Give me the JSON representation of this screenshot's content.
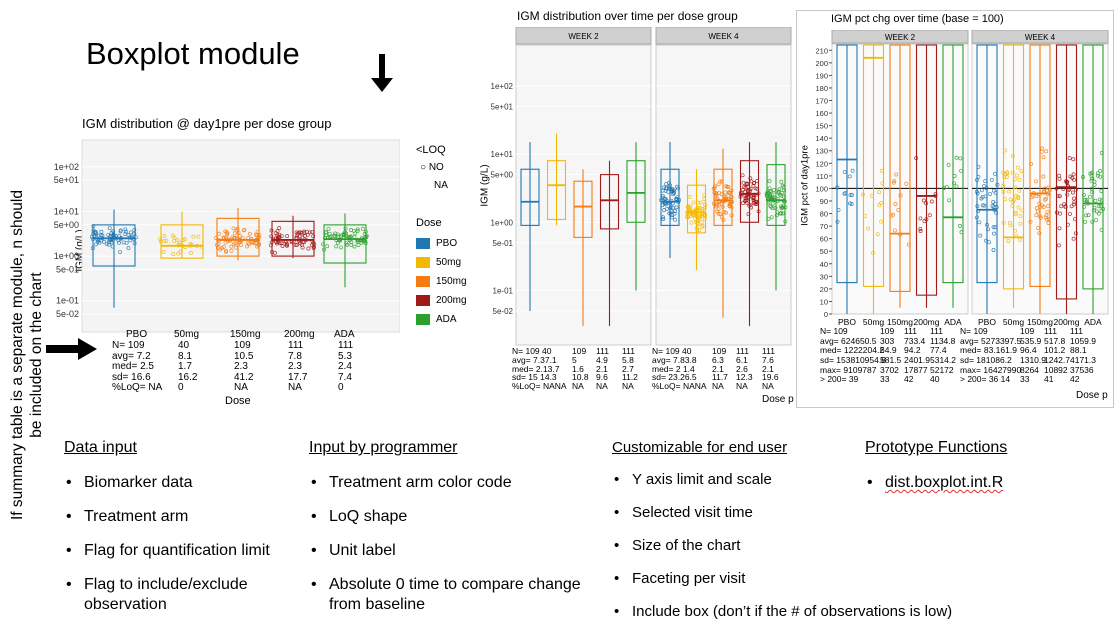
{
  "slide": {
    "title": "Boxplot module",
    "vertical_note": "If summary table is a separate module, n should be included on the chart"
  },
  "chart1": {
    "title": "IGM distribution @ day1pre per dose group",
    "ylabel": "IGM (g/L)",
    "xlabel": "Dose",
    "yticks": [
      "1e+02",
      "5e+01",
      "1e+01",
      "5e+00",
      "1e+00",
      "5e-01",
      "1e-01",
      "5e-02"
    ],
    "legend_loq_title": "<LOQ",
    "legend_loq_items": [
      "NO",
      "NA"
    ],
    "legend_dose_title": "Dose",
    "table_rows": [
      {
        "label": "N= 109",
        "vals": [
          "40",
          "109",
          "111",
          "111"
        ]
      },
      {
        "label": "avg= 7.2",
        "vals": [
          "8.1",
          "10.5",
          "7.8",
          "5.3"
        ]
      },
      {
        "label": "med= 2.5",
        "vals": [
          "1.7",
          "2.3",
          "2.3",
          "2.4"
        ]
      },
      {
        "label": "sd= 16.6",
        "vals": [
          "16.2",
          "41.2",
          "17.7",
          "7.4"
        ]
      },
      {
        "label": "%LoQ= NA",
        "vals": [
          "0",
          "NA",
          "NA",
          "0"
        ]
      }
    ]
  },
  "chart2": {
    "title": "IGM distribution over time per dose group",
    "facets": [
      "WEEK 2",
      "WEEK 4"
    ],
    "ylabel": "IGM (g/L)",
    "xlabel": "Dose p",
    "yticks": [
      "1e+02",
      "5e+01",
      "1e+01",
      "5e+00",
      "1e+00",
      "5e-01",
      "1e-01",
      "5e-02"
    ],
    "cats": [
      "PBO",
      "50mg",
      "150mg",
      "200mg",
      "ADA"
    ],
    "rows_left": [
      "N= 109 40",
      "avg= 7.37.1",
      "med= 2.13.7",
      "sd= 15 14.3",
      "%LoQ= NANA"
    ],
    "cols_left": [
      [
        "109",
        "111",
        "111"
      ],
      [
        "5",
        "4.9",
        "5.8"
      ],
      [
        "1.6",
        "2.1",
        "2.7"
      ],
      [
        "10.8",
        "9.6",
        "11.2"
      ],
      [
        "NA",
        "NA",
        "NA"
      ]
    ],
    "rows_right": [
      "N= 109 40",
      "avg= 7.83.8",
      "med= 2 1.4",
      "sd= 23.26.5",
      "%LoQ= NANA"
    ],
    "cols_right": [
      [
        "109",
        "111",
        "111"
      ],
      [
        "6.3",
        "6.1",
        "7.6"
      ],
      [
        "2.1",
        "2.6",
        "2.1"
      ],
      [
        "11.7",
        "12.3",
        "19.6"
      ],
      [
        "NA",
        "NA",
        "NA"
      ]
    ]
  },
  "chart3": {
    "title": "IGM pct chg over time (base = 100)",
    "facets": [
      "WEEK 2",
      "WEEK 4"
    ],
    "ylabel": "IGM pct of day1pre",
    "xlabel": "Dose p",
    "yticks": [
      "210",
      "200",
      "190",
      "180",
      "170",
      "160",
      "150",
      "140",
      "130",
      "120",
      "110",
      "100",
      "90",
      "80",
      "70",
      "60",
      "50",
      "40",
      "30",
      "20",
      "10",
      "0"
    ],
    "cats": [
      "PBO",
      "50mg",
      "150mg",
      "200mg",
      "ADA"
    ],
    "rows_left": [
      "N= 109",
      "avg= 624650.5",
      "med= 1222204.2",
      "sd= 153810954.8",
      "max= 9109787",
      "> 200= 39"
    ],
    "cols_left": [
      [
        "109",
        "111",
        "111"
      ],
      [
        "303",
        "733.4",
        "1134.8"
      ],
      [
        "64.9",
        "94.2",
        "77.4"
      ],
      [
        "581.5",
        "2401.9",
        "5314.2"
      ],
      [
        "3702",
        "17877",
        "52172"
      ],
      [
        "33",
        "42",
        "40"
      ]
    ],
    "rows_right": [
      "N= 109",
      "avg= 5273397.5",
      "med= 83.161.9",
      "sd= 181086.2",
      "max= 16427990",
      "> 200= 36 14"
    ],
    "cols_right": [
      [
        "109",
        "111",
        "111"
      ],
      [
        "535.9",
        "517.8",
        "1059.9"
      ],
      [
        "96.4",
        "101.2",
        "88.1"
      ],
      [
        "1310.9",
        "1242.7",
        "4171.3"
      ],
      [
        "8264",
        "10892",
        "37536"
      ],
      [
        "33",
        "41",
        "42"
      ]
    ]
  },
  "columns": {
    "data_input": {
      "heading": "Data input",
      "items": [
        "Biomarker data",
        "Treatment arm",
        "Flag for quantification limit",
        "Flag to include/exclude observation"
      ]
    },
    "programmer": {
      "heading": "Input by programmer",
      "items": [
        "Treatment arm color code",
        "LoQ shape",
        "Unit label",
        "Absolute 0 time to compare change from baseline"
      ]
    },
    "customizable": {
      "heading": "Customizable for end user",
      "items": [
        "Y axis limit and scale",
        "Selected visit time",
        "Size of the chart",
        "Faceting per visit",
        "Include box (don’t if the # of observations is low)"
      ]
    },
    "prototype": {
      "heading": "Prototype Functions",
      "items": [
        "dist.boxplot.int.R"
      ]
    }
  },
  "dose_groups": [
    {
      "name": "PBO",
      "color": "#1f77b4"
    },
    {
      "name": "50mg",
      "color": "#f5b800"
    },
    {
      "name": "150mg",
      "color": "#f57c12"
    },
    {
      "name": "200mg",
      "color": "#a11a1a"
    },
    {
      "name": "ADA",
      "color": "#2ca02c"
    }
  ]
}
